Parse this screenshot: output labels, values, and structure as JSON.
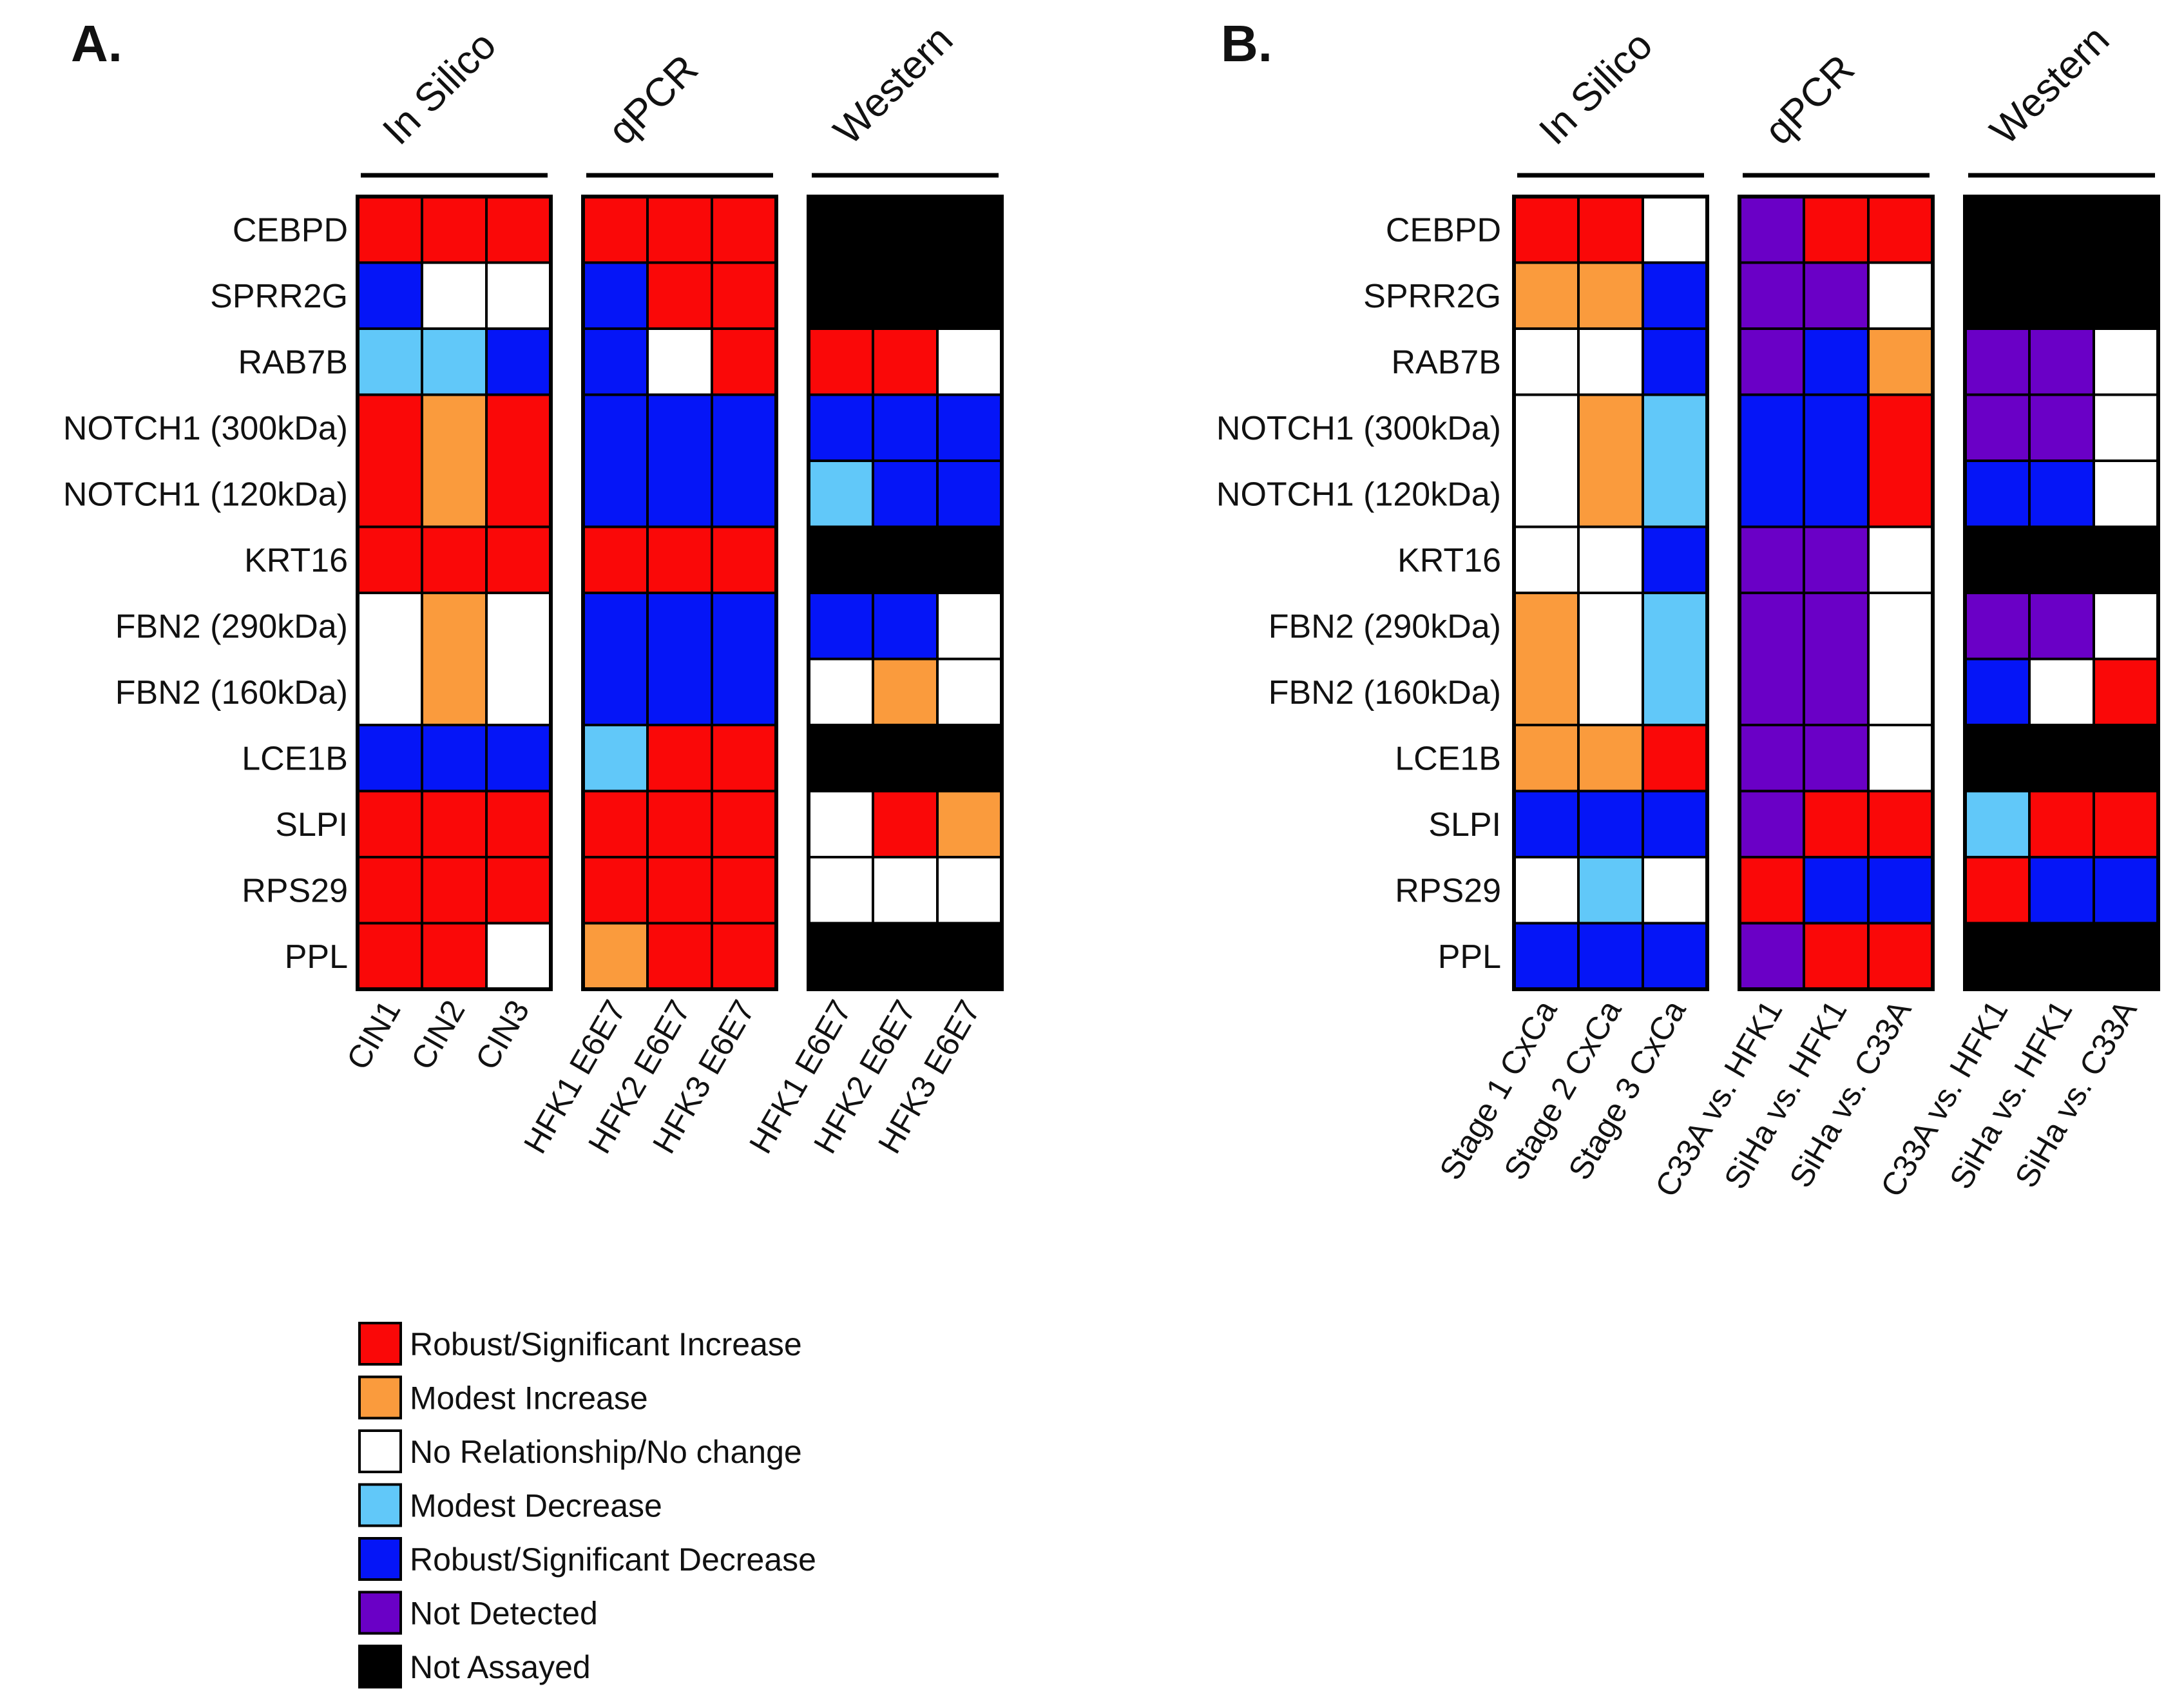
{
  "palette": {
    "R": "#fa0808",
    "O": "#fa9b3d",
    "W": "#ffffff",
    "L": "#61c8f9",
    "B": "#0515f7",
    "P": "#6a00c6",
    "K": "#000000"
  },
  "legend": [
    {
      "code": "R",
      "label": "Robust/Significant Increase"
    },
    {
      "code": "O",
      "label": "Modest Increase"
    },
    {
      "code": "W",
      "label": "No Relationship/No change"
    },
    {
      "code": "L",
      "label": "Modest Decrease"
    },
    {
      "code": "B",
      "label": "Robust/Significant Decrease"
    },
    {
      "code": "P",
      "label": "Not Detected"
    },
    {
      "code": "K",
      "label": "Not Assayed"
    }
  ],
  "chart_data": [
    {
      "type": "heatmap",
      "panel": "A.",
      "rows": [
        "CEBPD",
        "SPRR2G",
        "RAB7B",
        "NOTCH1 (300kDa)",
        "NOTCH1 (120kDa)",
        "KRT16",
        "FBN2 (290kDa)",
        "FBN2  (160kDa)",
        "LCE1B",
        "SLPI",
        "RPS29",
        "PPL"
      ],
      "groups": [
        {
          "name": "In Silico",
          "columns": [
            "CIN1",
            "CIN2",
            "CIN3"
          ],
          "blocks": [
            {
              "rows": [
                0
              ],
              "cells": [
                "R",
                "R",
                "R"
              ]
            },
            {
              "rows": [
                1
              ],
              "cells": [
                "B",
                "W",
                "W"
              ]
            },
            {
              "rows": [
                2
              ],
              "cells": [
                "L",
                "L",
                "B"
              ]
            },
            {
              "rows": [
                3,
                4
              ],
              "cells": [
                "R",
                "O",
                "R"
              ]
            },
            {
              "rows": [
                5
              ],
              "cells": [
                "R",
                "R",
                "R"
              ]
            },
            {
              "rows": [
                6,
                7
              ],
              "cells": [
                "W",
                "O",
                "W"
              ]
            },
            {
              "rows": [
                8
              ],
              "cells": [
                "B",
                "B",
                "B"
              ]
            },
            {
              "rows": [
                9
              ],
              "cells": [
                "R",
                "R",
                "R"
              ]
            },
            {
              "rows": [
                10
              ],
              "cells": [
                "R",
                "R",
                "R"
              ]
            },
            {
              "rows": [
                11
              ],
              "cells": [
                "R",
                "R",
                "W"
              ]
            }
          ]
        },
        {
          "name": "qPCR",
          "columns": [
            "HFK1 E6E7",
            "HFK2 E6E7",
            "HFK3 E6E7"
          ],
          "blocks": [
            {
              "rows": [
                0
              ],
              "cells": [
                "R",
                "R",
                "R"
              ]
            },
            {
              "rows": [
                1
              ],
              "cells": [
                "B",
                "R",
                "R"
              ]
            },
            {
              "rows": [
                2
              ],
              "cells": [
                "B",
                "W",
                "R"
              ]
            },
            {
              "rows": [
                3,
                4
              ],
              "cells": [
                "B",
                "B",
                "B"
              ]
            },
            {
              "rows": [
                5
              ],
              "cells": [
                "R",
                "R",
                "R"
              ]
            },
            {
              "rows": [
                6,
                7
              ],
              "cells": [
                "B",
                "B",
                "B"
              ]
            },
            {
              "rows": [
                8
              ],
              "cells": [
                "L",
                "R",
                "R"
              ]
            },
            {
              "rows": [
                9
              ],
              "cells": [
                "R",
                "R",
                "R"
              ]
            },
            {
              "rows": [
                10
              ],
              "cells": [
                "R",
                "R",
                "R"
              ]
            },
            {
              "rows": [
                11
              ],
              "cells": [
                "O",
                "R",
                "R"
              ]
            }
          ]
        },
        {
          "name": "Western",
          "columns": [
            "HFK1 E6E7",
            "HFK2 E6E7",
            "HFK3 E6E7"
          ],
          "blocks": [
            {
              "rows": [
                0,
                1
              ],
              "cells": [
                "K",
                "K",
                "K"
              ],
              "merged": true
            },
            {
              "rows": [
                2
              ],
              "cells": [
                "R",
                "R",
                "W"
              ]
            },
            {
              "rows": [
                3
              ],
              "cells": [
                "B",
                "B",
                "B"
              ]
            },
            {
              "rows": [
                4
              ],
              "cells": [
                "L",
                "B",
                "B"
              ]
            },
            {
              "rows": [
                5
              ],
              "cells": [
                "K",
                "K",
                "K"
              ],
              "merged": true
            },
            {
              "rows": [
                6
              ],
              "cells": [
                "B",
                "B",
                "W"
              ]
            },
            {
              "rows": [
                7
              ],
              "cells": [
                "W",
                "O",
                "W"
              ]
            },
            {
              "rows": [
                8
              ],
              "cells": [
                "K",
                "K",
                "K"
              ],
              "merged": true
            },
            {
              "rows": [
                9
              ],
              "cells": [
                "W",
                "R",
                "O"
              ]
            },
            {
              "rows": [
                10
              ],
              "cells": [
                "W",
                "W",
                "W"
              ]
            },
            {
              "rows": [
                11
              ],
              "cells": [
                "K",
                "K",
                "K"
              ],
              "merged": true
            }
          ]
        }
      ]
    },
    {
      "type": "heatmap",
      "panel": "B.",
      "rows": [
        "CEBPD",
        "SPRR2G",
        "RAB7B",
        "NOTCH1 (300kDa)",
        "NOTCH1 (120kDa)",
        "KRT16",
        "FBN2 (290kDa)",
        "FBN2  (160kDa)",
        "LCE1B",
        "SLPI",
        "RPS29",
        "PPL"
      ],
      "groups": [
        {
          "name": "In Silico",
          "columns": [
            "Stage 1 CxCa",
            "Stage 2 CxCa",
            "Stage 3 CxCa"
          ],
          "blocks": [
            {
              "rows": [
                0
              ],
              "cells": [
                "R",
                "R",
                "W"
              ]
            },
            {
              "rows": [
                1
              ],
              "cells": [
                "O",
                "O",
                "B"
              ]
            },
            {
              "rows": [
                2
              ],
              "cells": [
                "W",
                "W",
                "B"
              ]
            },
            {
              "rows": [
                3,
                4
              ],
              "cells": [
                "W",
                "O",
                "L"
              ]
            },
            {
              "rows": [
                5
              ],
              "cells": [
                "W",
                "W",
                "B"
              ]
            },
            {
              "rows": [
                6,
                7
              ],
              "cells": [
                "O",
                "W",
                "L"
              ]
            },
            {
              "rows": [
                8
              ],
              "cells": [
                "O",
                "O",
                "R"
              ]
            },
            {
              "rows": [
                9
              ],
              "cells": [
                "B",
                "B",
                "B"
              ]
            },
            {
              "rows": [
                10
              ],
              "cells": [
                "W",
                "L",
                "W"
              ]
            },
            {
              "rows": [
                11
              ],
              "cells": [
                "B",
                "B",
                "B"
              ]
            }
          ]
        },
        {
          "name": "qPCR",
          "columns": [
            "C33A vs. HFK1",
            "SiHa vs. HFK1",
            "SiHa vs. C33A"
          ],
          "blocks": [
            {
              "rows": [
                0
              ],
              "cells": [
                "P",
                "R",
                "R"
              ]
            },
            {
              "rows": [
                1
              ],
              "cells": [
                "P",
                "P",
                "W"
              ]
            },
            {
              "rows": [
                2
              ],
              "cells": [
                "P",
                "B",
                "O"
              ]
            },
            {
              "rows": [
                3,
                4
              ],
              "cells": [
                "B",
                "B",
                "R"
              ]
            },
            {
              "rows": [
                5
              ],
              "cells": [
                "P",
                "P",
                "W"
              ]
            },
            {
              "rows": [
                6,
                7
              ],
              "cells": [
                "P",
                "P",
                "W"
              ]
            },
            {
              "rows": [
                8
              ],
              "cells": [
                "P",
                "P",
                "W"
              ]
            },
            {
              "rows": [
                9
              ],
              "cells": [
                "P",
                "R",
                "R"
              ]
            },
            {
              "rows": [
                10
              ],
              "cells": [
                "R",
                "B",
                "B"
              ]
            },
            {
              "rows": [
                11
              ],
              "cells": [
                "P",
                "R",
                "R"
              ]
            }
          ]
        },
        {
          "name": "Western",
          "columns": [
            "C33A vs. HFK1",
            "SiHa vs. HFK1",
            "SiHa vs. C33A"
          ],
          "blocks": [
            {
              "rows": [
                0,
                1
              ],
              "cells": [
                "K",
                "K",
                "K"
              ],
              "merged": true
            },
            {
              "rows": [
                2
              ],
              "cells": [
                "P",
                "P",
                "W"
              ]
            },
            {
              "rows": [
                3
              ],
              "cells": [
                "P",
                "P",
                "W"
              ]
            },
            {
              "rows": [
                4
              ],
              "cells": [
                "B",
                "B",
                "W"
              ]
            },
            {
              "rows": [
                5
              ],
              "cells": [
                "K",
                "K",
                "K"
              ],
              "merged": true
            },
            {
              "rows": [
                6
              ],
              "cells": [
                "P",
                "P",
                "W"
              ]
            },
            {
              "rows": [
                7
              ],
              "cells": [
                "B",
                "W",
                "R"
              ]
            },
            {
              "rows": [
                8
              ],
              "cells": [
                "K",
                "K",
                "K"
              ],
              "merged": true
            },
            {
              "rows": [
                9
              ],
              "cells": [
                "L",
                "R",
                "R"
              ]
            },
            {
              "rows": [
                10
              ],
              "cells": [
                "R",
                "B",
                "B"
              ]
            },
            {
              "rows": [
                11
              ],
              "cells": [
                "K",
                "K",
                "K"
              ],
              "merged": true
            }
          ]
        }
      ]
    }
  ]
}
